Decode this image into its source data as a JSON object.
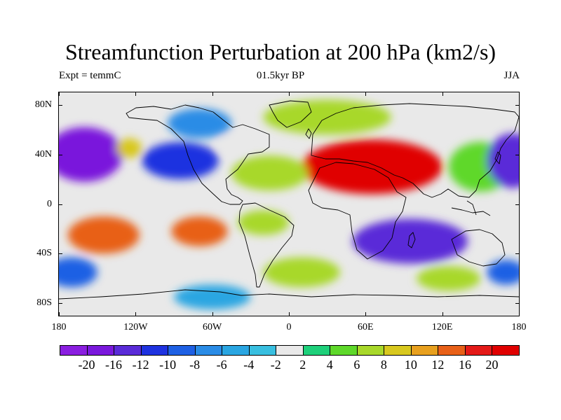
{
  "title": "Streamfunction Perturbation at 200 hPa (km2/s)",
  "subtitle_left": "Expt = temmC",
  "subtitle_center": "01.5kyr BP",
  "subtitle_right": "JJA",
  "map": {
    "projection": "cylindrical equidistant",
    "lon_range": [
      -180,
      180
    ],
    "lat_range": [
      -90,
      90
    ],
    "background_color": "#e9e9e9",
    "lat_tick_labels": [
      {
        "value": 80,
        "label": "80N"
      },
      {
        "value": 40,
        "label": "40N"
      },
      {
        "value": 0,
        "label": "0"
      },
      {
        "value": -40,
        "label": "40S"
      },
      {
        "value": -80,
        "label": "80S"
      }
    ],
    "lon_tick_labels": [
      {
        "value": -180,
        "label": "180"
      },
      {
        "value": -120,
        "label": "120W"
      },
      {
        "value": -60,
        "label": "60W"
      },
      {
        "value": 0,
        "label": "0"
      },
      {
        "value": 60,
        "label": "60E"
      },
      {
        "value": 120,
        "label": "120E"
      },
      {
        "value": 180,
        "label": "180"
      }
    ],
    "features": [
      {
        "name": "eurasian-high",
        "lon": 65,
        "lat": 30,
        "rx": 55,
        "ry": 22,
        "value": 20
      },
      {
        "name": "eurasian-high-core",
        "lon": 65,
        "lat": 30,
        "rx": 35,
        "ry": 14,
        "value": 24
      },
      {
        "name": "arctic-ridge",
        "lon": 30,
        "lat": 70,
        "rx": 50,
        "ry": 14,
        "value": 6
      },
      {
        "name": "atlantic-ridge",
        "lon": -15,
        "lat": 25,
        "rx": 30,
        "ry": 14,
        "value": 6
      },
      {
        "name": "west-pacific-high",
        "lon": 150,
        "lat": 30,
        "rx": 25,
        "ry": 20,
        "value": 4
      },
      {
        "name": "north-pacific-low-east",
        "lon": -160,
        "lat": 40,
        "rx": 30,
        "ry": 22,
        "value": -18
      },
      {
        "name": "north-pacific-low-west",
        "lon": 175,
        "lat": 35,
        "rx": 20,
        "ry": 22,
        "value": -16
      },
      {
        "name": "north-america-low",
        "lon": -85,
        "lat": 35,
        "rx": 30,
        "ry": 15,
        "value": -12
      },
      {
        "name": "canada-low",
        "lon": -70,
        "lat": 65,
        "rx": 25,
        "ry": 12,
        "value": -8
      },
      {
        "name": "gulf-of-alaska-ridge",
        "lon": -125,
        "lat": 45,
        "rx": 10,
        "ry": 8,
        "value": 8
      },
      {
        "name": "north-atlantic-white-cell",
        "lon": -45,
        "lat": 48,
        "rx": 10,
        "ry": 6,
        "value": 0
      },
      {
        "name": "south-pacific-high",
        "lon": -145,
        "lat": -25,
        "rx": 28,
        "ry": 15,
        "value": 14
      },
      {
        "name": "south-america-high",
        "lon": -70,
        "lat": -22,
        "rx": 22,
        "ry": 12,
        "value": 14
      },
      {
        "name": "south-atlantic-wave",
        "lon": -20,
        "lat": -15,
        "rx": 20,
        "ry": 10,
        "value": 6
      },
      {
        "name": "south-indian-low",
        "lon": 95,
        "lat": -30,
        "rx": 45,
        "ry": 18,
        "value": -16
      },
      {
        "name": "southern-ocean-ridge",
        "lon": 10,
        "lat": -55,
        "rx": 30,
        "ry": 12,
        "value": 6
      },
      {
        "name": "southern-ocean-ridge-east",
        "lon": 125,
        "lat": -60,
        "rx": 25,
        "ry": 10,
        "value": 6
      },
      {
        "name": "antarctic-low",
        "lon": -60,
        "lat": -75,
        "rx": 30,
        "ry": 10,
        "value": -6
      },
      {
        "name": "south-pacific-low",
        "lon": -170,
        "lat": -55,
        "rx": 20,
        "ry": 12,
        "value": -10
      },
      {
        "name": "far-east-low",
        "lon": 170,
        "lat": -55,
        "rx": 15,
        "ry": 10,
        "value": -10
      }
    ]
  },
  "colorbar": {
    "levels": [
      -20,
      -16,
      -12,
      -10,
      -8,
      -6,
      -4,
      -2,
      2,
      4,
      6,
      8,
      10,
      12,
      16,
      20
    ],
    "labels": [
      "-20",
      "-16",
      "-12",
      "-10",
      "-8",
      "-6",
      "-4",
      "-2",
      "2",
      "4",
      "6",
      "8",
      "10",
      "12",
      "16",
      "20"
    ],
    "colors": [
      "#8a1ee0",
      "#7a18dc",
      "#5a2bd8",
      "#1e32e0",
      "#1e60e4",
      "#2a8ce6",
      "#2aa6e2",
      "#38bfe0",
      "#e9e9e9",
      "#1ed07a",
      "#5ed82a",
      "#a8d82a",
      "#d8c81e",
      "#e8a01e",
      "#e86018",
      "#e41a18",
      "#e00000"
    ]
  }
}
